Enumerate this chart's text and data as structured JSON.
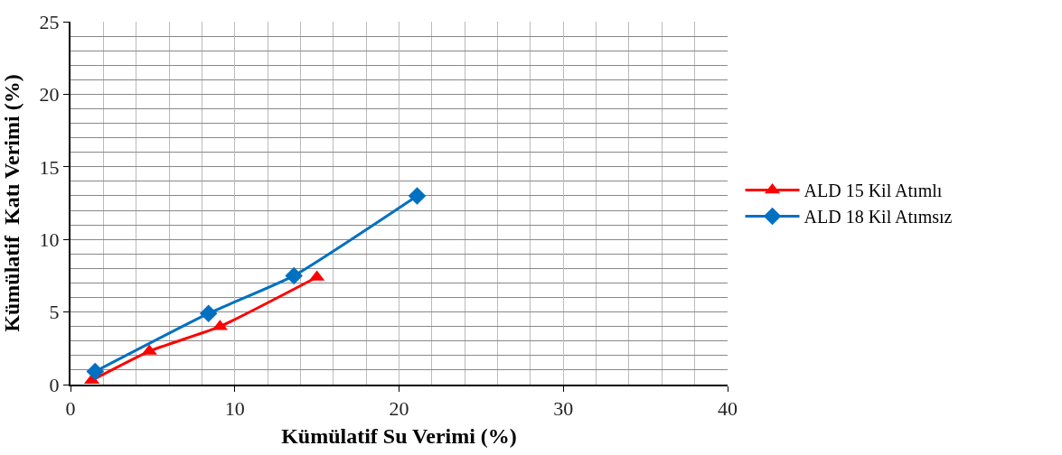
{
  "chart_data": {
    "type": "line",
    "xlabel": "Kümülatif Su Verimi (%)",
    "ylabel": "Kümülatif  Katı Verimi (%)",
    "series": [
      {
        "name": "ALD 15 Kil Atımlı",
        "color": "#ff0000",
        "marker": "triangle",
        "x": [
          1.3,
          4.8,
          9.1,
          15.0
        ],
        "values": [
          0.3,
          2.3,
          4.0,
          7.4
        ]
      },
      {
        "name": "ALD 18 Kil Atımsız",
        "color": "#0070c0",
        "marker": "diamond",
        "x": [
          1.5,
          8.4,
          13.6,
          21.1
        ],
        "values": [
          0.9,
          4.9,
          7.5,
          13.0
        ]
      }
    ],
    "xlim": [
      0,
      40
    ],
    "ylim": [
      0,
      25
    ],
    "xticks": [
      0,
      {
        "value": 2,
        "label": null
      },
      {
        "value": 4,
        "label": null
      },
      {
        "value": 6,
        "label": null
      },
      {
        "value": 8,
        "label": null
      },
      10,
      {
        "value": 12,
        "label": null
      },
      {
        "value": 14,
        "label": null
      },
      {
        "value": 16,
        "label": null
      },
      {
        "value": 18,
        "label": null
      },
      20,
      {
        "value": 22,
        "label": null
      },
      {
        "value": 24,
        "label": null
      },
      {
        "value": 26,
        "label": null
      },
      {
        "value": 28,
        "label": null
      },
      30,
      {
        "value": 32,
        "label": null
      },
      {
        "value": 34,
        "label": null
      },
      {
        "value": 36,
        "label": null
      },
      {
        "value": 38,
        "label": null
      },
      40
    ],
    "yticks": [
      0,
      {
        "value": 1,
        "label": null
      },
      {
        "value": 2,
        "label": null
      },
      {
        "value": 3,
        "label": null
      },
      {
        "value": 4,
        "label": null
      },
      5,
      {
        "value": 6,
        "label": null
      },
      {
        "value": 7,
        "label": null
      },
      {
        "value": 8,
        "label": null
      },
      {
        "value": 9,
        "label": null
      },
      10,
      {
        "value": 11,
        "label": null
      },
      {
        "value": 12,
        "label": null
      },
      {
        "value": 13,
        "label": null
      },
      {
        "value": 14,
        "label": null
      },
      15,
      {
        "value": 16,
        "label": null
      },
      {
        "value": 17,
        "label": null
      },
      {
        "value": 18,
        "label": null
      },
      {
        "value": 19,
        "label": null
      },
      20,
      {
        "value": 21,
        "label": null
      },
      {
        "value": 22,
        "label": null
      },
      {
        "value": 23,
        "label": null
      },
      {
        "value": 24,
        "label": null
      },
      25
    ],
    "grid": true,
    "legend": "right",
    "line_style": "solid"
  }
}
